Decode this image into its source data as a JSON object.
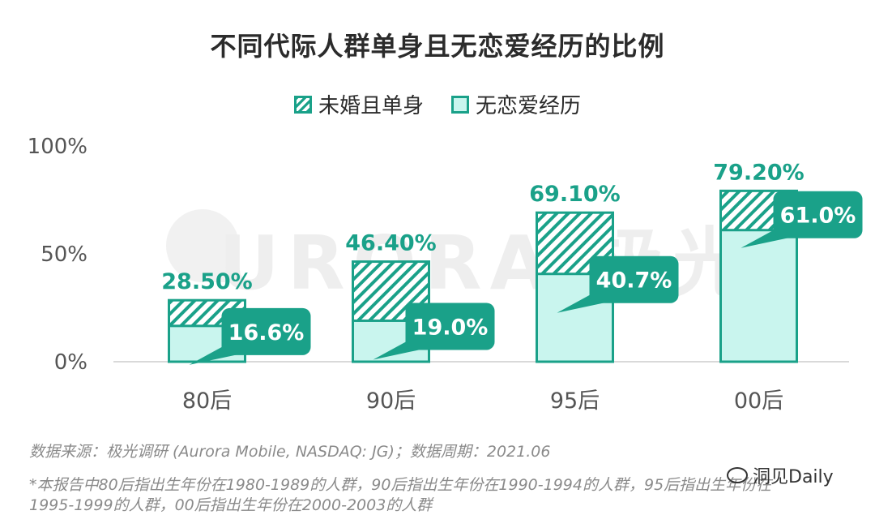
{
  "title": "不同代际人群单身且无恋爱经历的比例",
  "legend": {
    "hatched_label": "未婚且单身",
    "solid_label": "无恋爱经历"
  },
  "watermark": "URORA 极光",
  "footnotes": {
    "source": "数据来源：极光调研 (Aurora Mobile, NASDAQ: JG)；数据周期：2021.06",
    "note_line1": "*本报告中80后指出生年份在1980-1989的人群，90后指出生年份在1990-1994的人群，95后指出生年份在",
    "note_line2": "1995-1999的人群，00后指出生年份在2000-2003的人群"
  },
  "brand": "洞见Daily",
  "colors": {
    "teal": "#1aa189",
    "light_fill": "#c9f5ee",
    "axis_text": "#555555",
    "grid": "#d9d9d9"
  },
  "chart_data": {
    "type": "bar",
    "categories": [
      "80后",
      "90后",
      "95后",
      "00后"
    ],
    "series": [
      {
        "name": "未婚且单身",
        "values": [
          28.5,
          46.4,
          69.1,
          79.2
        ],
        "labels": [
          "28.50%",
          "46.40%",
          "69.10%",
          "79.20%"
        ]
      },
      {
        "name": "无恋爱经历",
        "values": [
          16.6,
          19.0,
          40.7,
          61.0
        ],
        "labels": [
          "16.6%",
          "19.0%",
          "40.7%",
          "61.0%"
        ]
      }
    ],
    "y_ticks": [
      0,
      50,
      100
    ],
    "y_tick_labels": [
      "0%",
      "50%",
      "100%"
    ],
    "ylim": [
      0,
      100
    ],
    "legend_position": "top-center"
  }
}
